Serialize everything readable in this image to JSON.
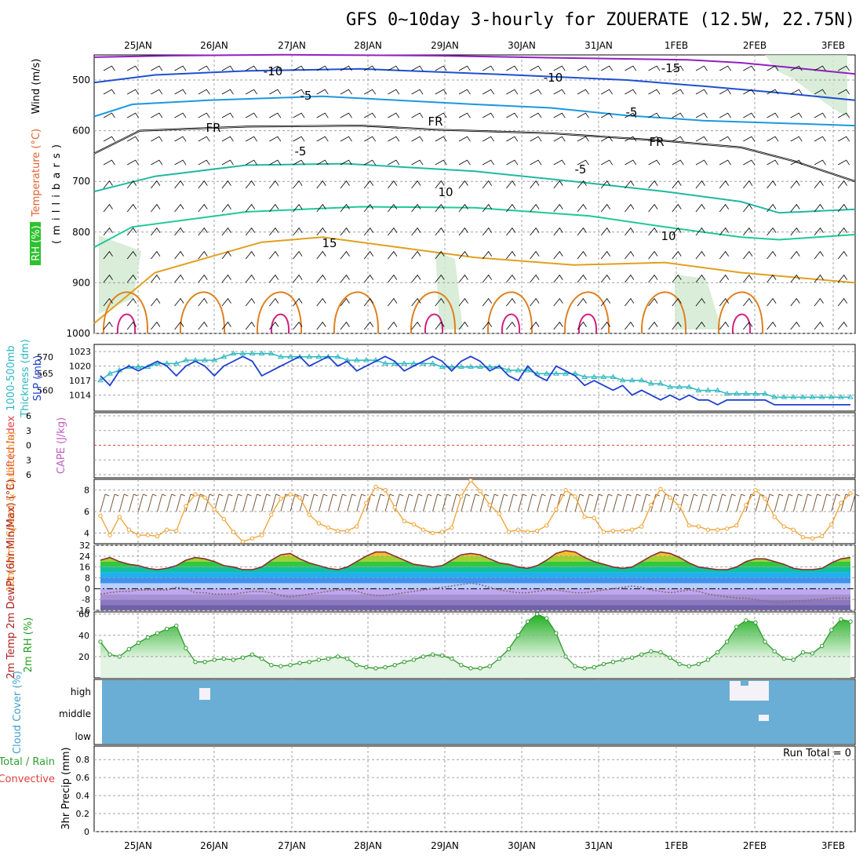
{
  "title": "GFS 0~10day 3-hourly for ZOUERATE (12.5W, 22.75N)",
  "dates": [
    "25JAN",
    "26JAN",
    "27JAN",
    "28JAN",
    "29JAN",
    "30JAN",
    "31JAN",
    "1FEB",
    "2FEB",
    "3FEB"
  ],
  "colors": {
    "grid": "#a0a0a0",
    "slp": "#1f3fd0",
    "thickness": "#2ab8c0",
    "wind10m": "#f0a030",
    "barb": "#7a5a3a",
    "rh2m": "#2e9a2e",
    "cloud": "#6aaed6",
    "zeroLine": "#e04040"
  },
  "chart_data": [
    {
      "type": "line",
      "panel": "upper-air",
      "ylabel_parts": [
        "RH (%)",
        "Temperature (°C)",
        "Wind (m/s)"
      ],
      "yaxis_label": "( m i l l i b a r s )",
      "yticks": [
        "500",
        "600",
        "700",
        "800",
        "900",
        "1000"
      ],
      "contour_labels": [
        "-15",
        "-10",
        "-10",
        "-5",
        "-5",
        "FR",
        "FR",
        "FR",
        "-5",
        "-5",
        "10",
        "15",
        "10"
      ],
      "series": [
        {
          "name": "-15",
          "color": "#9020c0",
          "x": [
            0,
            0.1,
            0.25,
            0.45,
            0.6,
            0.78,
            0.85,
            0.92,
            1
          ],
          "y": [
            455,
            452,
            450,
            452,
            456,
            460,
            466,
            476,
            488
          ]
        },
        {
          "name": "-10",
          "color": "#1f50d0",
          "x": [
            0,
            0.08,
            0.2,
            0.35,
            0.55,
            0.7,
            0.8,
            0.9,
            1
          ],
          "y": [
            505,
            490,
            482,
            478,
            490,
            500,
            512,
            525,
            540
          ]
        },
        {
          "name": "-5",
          "color": "#1c98e0",
          "x": [
            0,
            0.05,
            0.15,
            0.3,
            0.5,
            0.6,
            0.7,
            0.8,
            1
          ],
          "y": [
            572,
            548,
            540,
            532,
            548,
            555,
            570,
            580,
            590
          ]
        },
        {
          "name": "FR",
          "color": "#000000",
          "x": [
            0,
            0.06,
            0.2,
            0.35,
            0.45,
            0.6,
            0.75,
            0.85,
            0.92,
            1
          ],
          "y": [
            645,
            600,
            592,
            590,
            598,
            605,
            620,
            633,
            660,
            700
          ]
        },
        {
          "name": "5",
          "color": "#20b8a0",
          "x": [
            0,
            0.08,
            0.2,
            0.33,
            0.5,
            0.63,
            0.75,
            0.85,
            0.9,
            1
          ],
          "y": [
            720,
            690,
            668,
            665,
            680,
            700,
            720,
            740,
            762,
            755
          ]
        },
        {
          "name": "10",
          "color": "#20c898",
          "x": [
            0,
            0.05,
            0.2,
            0.35,
            0.5,
            0.65,
            0.75,
            0.85,
            0.9,
            1
          ],
          "y": [
            830,
            790,
            760,
            750,
            752,
            768,
            790,
            810,
            815,
            805
          ]
        },
        {
          "name": "15",
          "color": "#e0a020",
          "x": [
            0,
            0.08,
            0.15,
            0.22,
            0.3,
            0.4,
            0.5,
            0.63,
            0.75,
            0.85,
            1
          ],
          "y": [
            980,
            880,
            850,
            820,
            810,
            830,
            850,
            865,
            860,
            880,
            900
          ]
        }
      ]
    },
    {
      "type": "line",
      "panel": "slp-thickness",
      "ylabel_left": [
        "1000-500mb",
        "Thickness (dm)"
      ],
      "ylabel_right": "SLP (mb)",
      "left_ticks": [
        "570",
        "565",
        "560"
      ],
      "right_ticks": [
        "1023",
        "1020",
        "1017",
        "1014"
      ],
      "series": [
        {
          "name": "SLP",
          "axis": "right",
          "values": [
            1018,
            1016,
            1019,
            1020,
            1019,
            1020,
            1021,
            1020,
            1018,
            1020,
            1021,
            1020,
            1018,
            1020,
            1021,
            1022,
            1021,
            1018,
            1019,
            1020,
            1021,
            1022,
            1020,
            1021,
            1022,
            1020,
            1021,
            1019,
            1020,
            1021,
            1022,
            1021,
            1019,
            1020,
            1021,
            1022,
            1021,
            1019,
            1021,
            1022,
            1021,
            1019,
            1020,
            1018,
            1017,
            1020,
            1018,
            1017,
            1020,
            1019,
            1018,
            1016,
            1017,
            1016,
            1015,
            1016,
            1014,
            1015,
            1014,
            1013,
            1014,
            1013,
            1014,
            1013,
            1013,
            1012,
            1013,
            1013,
            1013,
            1013,
            1013,
            1012,
            1012,
            1012,
            1012,
            1012,
            1012,
            1012,
            1012,
            1012
          ]
        },
        {
          "name": "Thickness",
          "axis": "left",
          "values": [
            563,
            565,
            566,
            567,
            567,
            567,
            568,
            568,
            568,
            569,
            569,
            569,
            569,
            570,
            571,
            571,
            571,
            571,
            571,
            570,
            570,
            570,
            570,
            570,
            570,
            570,
            569,
            569,
            569,
            569,
            568,
            568,
            568,
            568,
            568,
            568,
            567,
            567,
            567,
            567,
            567,
            567,
            567,
            566,
            566,
            566,
            565,
            565,
            565,
            565,
            565,
            564,
            564,
            564,
            564,
            563,
            563,
            563,
            562,
            562,
            561,
            561,
            561,
            560,
            560,
            560,
            559,
            559,
            559,
            559,
            559,
            558,
            558,
            558,
            558,
            558,
            558,
            558,
            558,
            558
          ]
        }
      ]
    },
    {
      "type": "line",
      "panel": "li-cape",
      "ylabel_left": "Lifted Index",
      "ylabel_right": "CAPE (J/kg)",
      "yticks": [
        "-6",
        "-3",
        "0",
        "3",
        "6"
      ],
      "series": [
        {
          "name": "LI",
          "values": [
            0
          ]
        }
      ]
    },
    {
      "type": "line",
      "panel": "wind-10m",
      "ylabel": "10m Wind Speed & Barbs (m/s)",
      "yticks": [
        "8",
        "6",
        "4"
      ],
      "ylim": [
        3,
        9
      ],
      "series": [
        {
          "name": "10m Wind",
          "values": [
            5.6,
            3.8,
            5.5,
            4.3,
            3.8,
            3.8,
            3.7,
            4.3,
            4.2,
            6.5,
            7.6,
            7.3,
            6.2,
            5.3,
            4.1,
            3.2,
            3.5,
            3.8,
            5.7,
            7.2,
            7.6,
            7.3,
            5.7,
            4.9,
            4.5,
            4.2,
            4.2,
            4.6,
            6.8,
            8.3,
            8.0,
            6.4,
            5.1,
            4.8,
            4.3,
            4.0,
            4.1,
            4.5,
            7.4,
            8.9,
            7.9,
            6.6,
            5.8,
            4.1,
            4.3,
            4.1,
            4.2,
            4.7,
            6.2,
            8.0,
            7.4,
            5.5,
            5.4,
            4.1,
            4.2,
            4.2,
            4.3,
            4.6,
            6.6,
            8.1,
            7.3,
            6.5,
            4.7,
            4.6,
            4.3,
            4.3,
            4.4,
            4.7,
            6.6,
            8.0,
            7.2,
            5.5,
            4.6,
            4.3,
            3.6,
            3.5,
            3.7,
            4.8,
            6.8,
            7.7
          ]
        }
      ]
    },
    {
      "type": "area",
      "panel": "temp-2m",
      "ylabel": "2m Temp 2m DewPt (6hr Min/Max) (°C)",
      "yticks": [
        "32",
        "24",
        "16",
        "8",
        "0",
        "-8",
        "-16"
      ],
      "ylim": [
        -16,
        32
      ],
      "series": [
        {
          "name": "2m Temp",
          "values": [
            21,
            23,
            20,
            18,
            17,
            15,
            14,
            15,
            17,
            21,
            23,
            22,
            20,
            17,
            16,
            14,
            14,
            16,
            21,
            25,
            26,
            22,
            19,
            17,
            15,
            14,
            16,
            20,
            24,
            27,
            27,
            24,
            21,
            18,
            17,
            16,
            17,
            21,
            25,
            26,
            25,
            22,
            19,
            18,
            16,
            15,
            17,
            21,
            26,
            28,
            27,
            23,
            20,
            18,
            16,
            15,
            16,
            20,
            24,
            27,
            26,
            23,
            19,
            16,
            15,
            14,
            14,
            16,
            20,
            22,
            22,
            20,
            18,
            15,
            14,
            14,
            15,
            19,
            22,
            23
          ]
        },
        {
          "name": "2m DewPt",
          "values": [
            -4,
            -3,
            -2,
            -2,
            -1,
            -1,
            -1,
            -1,
            1,
            0,
            -3,
            -3,
            -4,
            -4,
            -4,
            -3,
            -2,
            -2,
            -3,
            -5,
            -6,
            -5,
            -4,
            -3,
            -2,
            -1,
            -1,
            -2,
            -4,
            -5,
            -5,
            -4,
            -3,
            -2,
            -1,
            0,
            1,
            2,
            3,
            4,
            3,
            1,
            -1,
            -2,
            -3,
            -3,
            -2,
            -1,
            -1,
            -2,
            -3,
            -3,
            -2,
            -1,
            0,
            1,
            2,
            1,
            -1,
            -2,
            -3,
            -2,
            -1,
            -2,
            -4,
            -5,
            -6,
            -7,
            -7,
            -8,
            -9,
            -10,
            -10,
            -9,
            -9,
            -8,
            -8,
            -7,
            -7,
            -7
          ]
        }
      ]
    },
    {
      "type": "area",
      "panel": "rh-2m",
      "ylabel": "2m RH (%)",
      "yticks": [
        "60",
        "40",
        "20"
      ],
      "ylim": [
        0,
        62
      ],
      "series": [
        {
          "name": "2m RH",
          "values": [
            34,
            22,
            20,
            27,
            33,
            38,
            42,
            46,
            49,
            28,
            15,
            15,
            17,
            18,
            17,
            19,
            22,
            18,
            12,
            11,
            12,
            14,
            15,
            17,
            18,
            20,
            18,
            12,
            10,
            9,
            10,
            12,
            15,
            17,
            20,
            22,
            21,
            18,
            12,
            9,
            9,
            11,
            18,
            27,
            40,
            53,
            60,
            56,
            42,
            20,
            11,
            9,
            10,
            13,
            15,
            17,
            19,
            22,
            25,
            24,
            19,
            13,
            11,
            13,
            17,
            24,
            34,
            48,
            54,
            52,
            34,
            25,
            18,
            17,
            24,
            23,
            30,
            45,
            55,
            53
          ]
        }
      ]
    },
    {
      "type": "heatmap",
      "panel": "cloud-cover",
      "ylabel": "Cloud Cover (%)",
      "levels": [
        "high",
        "middle",
        "low"
      ]
    },
    {
      "type": "bar",
      "panel": "precip",
      "ylabel": "3hr Precip (mm)",
      "legend_left": [
        "Total / Rain",
        "Convective"
      ],
      "yticks": [
        "0.8",
        "0.6",
        "0.4",
        "0.2",
        "0"
      ],
      "ylim": [
        0,
        1
      ],
      "run_total": "Run Total = 0",
      "values": []
    }
  ]
}
